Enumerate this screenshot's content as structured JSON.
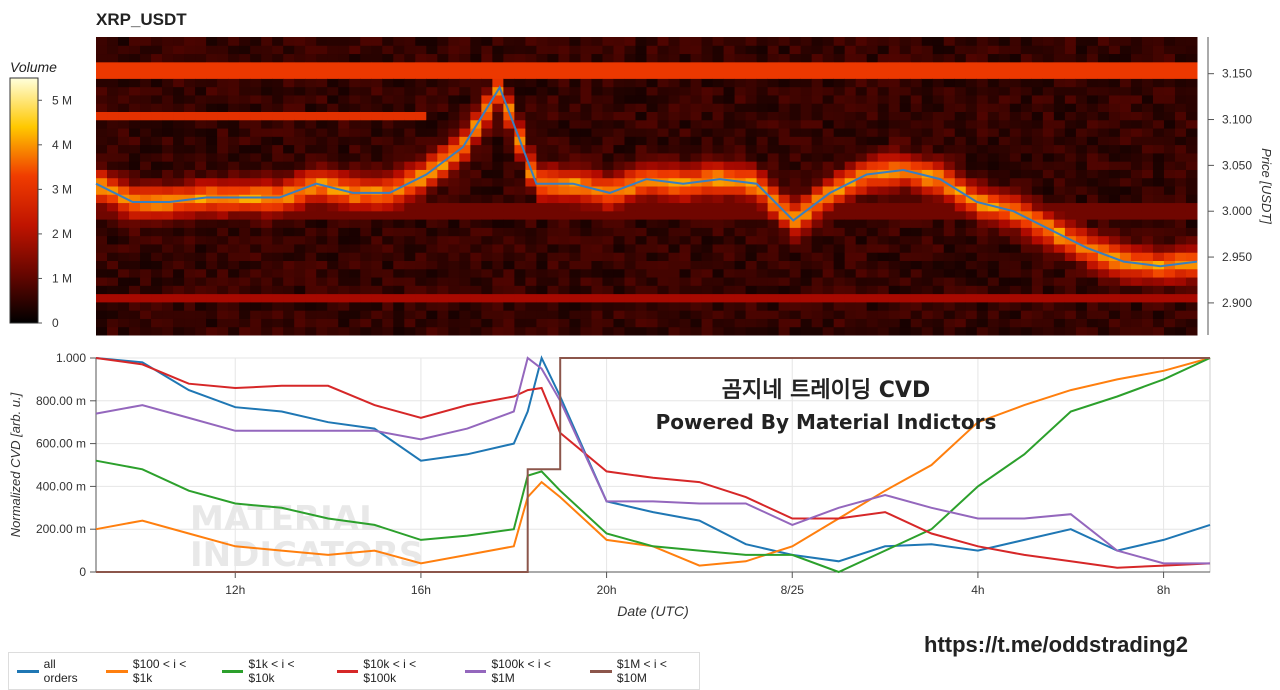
{
  "header": {
    "title": "XRP_USDT",
    "colorbar_title": "Volume"
  },
  "overlay": {
    "line1": "곰지네 트레이딩 CVD",
    "line2": "Powered By Material Indictors",
    "watermark1": "MATERIAL",
    "watermark2": "INDICATORS"
  },
  "footer": {
    "url": "https://t.me/oddstrading2"
  },
  "chart_data": [
    {
      "type": "heatmap",
      "title": "XRP_USDT",
      "ylabel": "Price [USDT]",
      "ylim": [
        2.865,
        3.19
      ],
      "y_ticks": [
        "2.900",
        "2.950",
        "3.000",
        "3.050",
        "3.100",
        "3.150"
      ],
      "y_tick_values": [
        2.9,
        2.95,
        3.0,
        3.05,
        3.1,
        3.15
      ],
      "colorbar": {
        "label": "Volume",
        "ticks": [
          "0",
          "1 M",
          "2 M",
          "3 M",
          "4 M",
          "5 M"
        ],
        "tick_values": [
          0,
          1,
          2,
          3,
          4,
          5
        ],
        "max": 5.5
      },
      "bands": [
        {
          "price": 3.155,
          "volume": 3.2,
          "start_hour": 0,
          "end_hour": 30
        },
        {
          "price": 3.105,
          "volume": 3.0,
          "start_hour": 0,
          "end_hour": 9
        },
        {
          "price": 2.905,
          "volume": 1.8,
          "start_hour": 0,
          "end_hour": 30
        },
        {
          "price": 3.0,
          "volume": 1.2,
          "start_hour": 0,
          "end_hour": 30
        }
      ],
      "price_series": {
        "name": "price",
        "x_hours": [
          0,
          1,
          2,
          3,
          4,
          5,
          6,
          7,
          8,
          9,
          10,
          11,
          12,
          13,
          14,
          15,
          16,
          17,
          18,
          19,
          20,
          21,
          22,
          23,
          24,
          25,
          26,
          27,
          28,
          29,
          30
        ],
        "y": [
          3.03,
          3.01,
          3.01,
          3.015,
          3.015,
          3.015,
          3.03,
          3.02,
          3.02,
          3.04,
          3.07,
          3.135,
          3.03,
          3.03,
          3.02,
          3.035,
          3.03,
          3.035,
          3.03,
          2.99,
          3.02,
          3.04,
          3.045,
          3.035,
          3.01,
          3.0,
          2.98,
          2.96,
          2.945,
          2.94,
          2.945
        ]
      }
    },
    {
      "type": "line",
      "xlabel": "Date (UTC)",
      "ylabel": "Normalized CVD [arb. u.]",
      "ylim": [
        0,
        1
      ],
      "y_ticks": [
        "0",
        "200.00 m",
        "400.00 m",
        "600.00 m",
        "800.00 m",
        "1.000"
      ],
      "y_tick_values": [
        0,
        0.2,
        0.4,
        0.6,
        0.8,
        1.0
      ],
      "x_ticks": [
        "12h",
        "16h",
        "20h",
        "8/25",
        "4h",
        "8h"
      ],
      "x_tick_hours": [
        3,
        7,
        11,
        15,
        19,
        23
      ],
      "x_range_hours": [
        0,
        24
      ],
      "x_hours": [
        0,
        1,
        2,
        3,
        4,
        5,
        6,
        7,
        8,
        9,
        9.3,
        9.6,
        10,
        11,
        12,
        13,
        14,
        15,
        16,
        17,
        18,
        19,
        20,
        21,
        22,
        23,
        24
      ],
      "series": [
        {
          "name": "all orders",
          "color": "#1f77b4",
          "values": [
            1.0,
            0.98,
            0.85,
            0.77,
            0.75,
            0.7,
            0.67,
            0.52,
            0.55,
            0.6,
            0.75,
            1.0,
            0.82,
            0.33,
            0.28,
            0.24,
            0.13,
            0.08,
            0.05,
            0.12,
            0.13,
            0.1,
            0.15,
            0.2,
            0.1,
            0.15,
            0.22
          ]
        },
        {
          "name": "$100 < i < $1k",
          "color": "#ff7f0e",
          "values": [
            0.2,
            0.24,
            0.18,
            0.12,
            0.1,
            0.08,
            0.1,
            0.04,
            0.08,
            0.12,
            0.35,
            0.42,
            0.35,
            0.15,
            0.12,
            0.03,
            0.05,
            0.12,
            0.25,
            0.38,
            0.5,
            0.7,
            0.78,
            0.85,
            0.9,
            0.94,
            1.0
          ]
        },
        {
          "name": "$1k < i < $10k",
          "color": "#2ca02c",
          "values": [
            0.52,
            0.48,
            0.38,
            0.32,
            0.3,
            0.25,
            0.22,
            0.15,
            0.17,
            0.2,
            0.45,
            0.47,
            0.38,
            0.18,
            0.12,
            0.1,
            0.08,
            0.08,
            0.0,
            0.1,
            0.2,
            0.4,
            0.55,
            0.75,
            0.82,
            0.9,
            1.0
          ]
        },
        {
          "name": "$10k < i < $100k",
          "color": "#d62728",
          "values": [
            1.0,
            0.97,
            0.88,
            0.86,
            0.87,
            0.87,
            0.78,
            0.72,
            0.78,
            0.82,
            0.85,
            0.86,
            0.65,
            0.47,
            0.44,
            0.42,
            0.35,
            0.25,
            0.25,
            0.28,
            0.18,
            0.12,
            0.08,
            0.05,
            0.02,
            0.03,
            0.04
          ]
        },
        {
          "name": "$100k < i < $1M",
          "color": "#9467bd",
          "values": [
            0.74,
            0.78,
            0.72,
            0.66,
            0.66,
            0.66,
            0.66,
            0.62,
            0.67,
            0.75,
            1.0,
            0.95,
            0.8,
            0.33,
            0.33,
            0.32,
            0.32,
            0.22,
            0.3,
            0.36,
            0.3,
            0.25,
            0.25,
            0.27,
            0.1,
            0.04,
            0.04
          ]
        },
        {
          "name": "$1M < i < $10M",
          "color": "#8c564b",
          "values": [
            0,
            0,
            0,
            0,
            0,
            0,
            0,
            0,
            0,
            0,
            0.48,
            0.48,
            1.0,
            1.0,
            1.0,
            1.0,
            1.0,
            1.0,
            1.0,
            1.0,
            1.0,
            1.0,
            1.0,
            1.0,
            1.0,
            1.0,
            1.0
          ]
        }
      ]
    }
  ]
}
